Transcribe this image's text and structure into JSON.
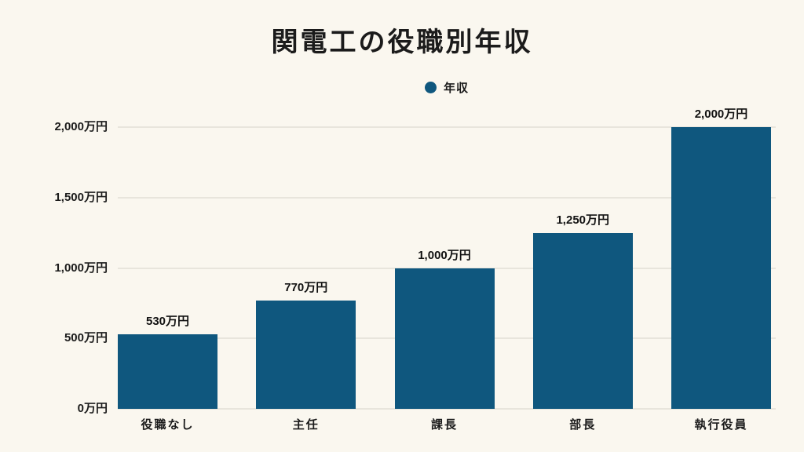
{
  "page": {
    "background_color": "#FAF7EF",
    "text_color": "#1B1B1B",
    "gridline_color": "#E8E5DC"
  },
  "title": "関電工の役職別年収",
  "legend": {
    "label": "年収",
    "marker_color": "#0F577E"
  },
  "chart_data": {
    "type": "bar",
    "title": "関電工の役職別年収",
    "series_name": "年収",
    "categories": [
      "役職なし",
      "主任",
      "課長",
      "部長",
      "執行役員"
    ],
    "values": [
      530,
      770,
      1000,
      1250,
      2000
    ],
    "value_labels": [
      "530万円",
      "770万円",
      "1,000万円",
      "1,250万円",
      "2,000万円"
    ],
    "unit": "万円",
    "xlabel": "",
    "ylabel": "",
    "ylim": [
      0,
      2000
    ],
    "yticks": [
      {
        "value": 0,
        "label": "0万円"
      },
      {
        "value": 500,
        "label": "500万円"
      },
      {
        "value": 1000,
        "label": "1,000万円"
      },
      {
        "value": 1500,
        "label": "1,500万円"
      },
      {
        "value": 2000,
        "label": "2,000万円"
      }
    ],
    "grid": true,
    "legend_position": "top-center",
    "bar_color": "#0F577E",
    "background": "#FAF7EF"
  }
}
